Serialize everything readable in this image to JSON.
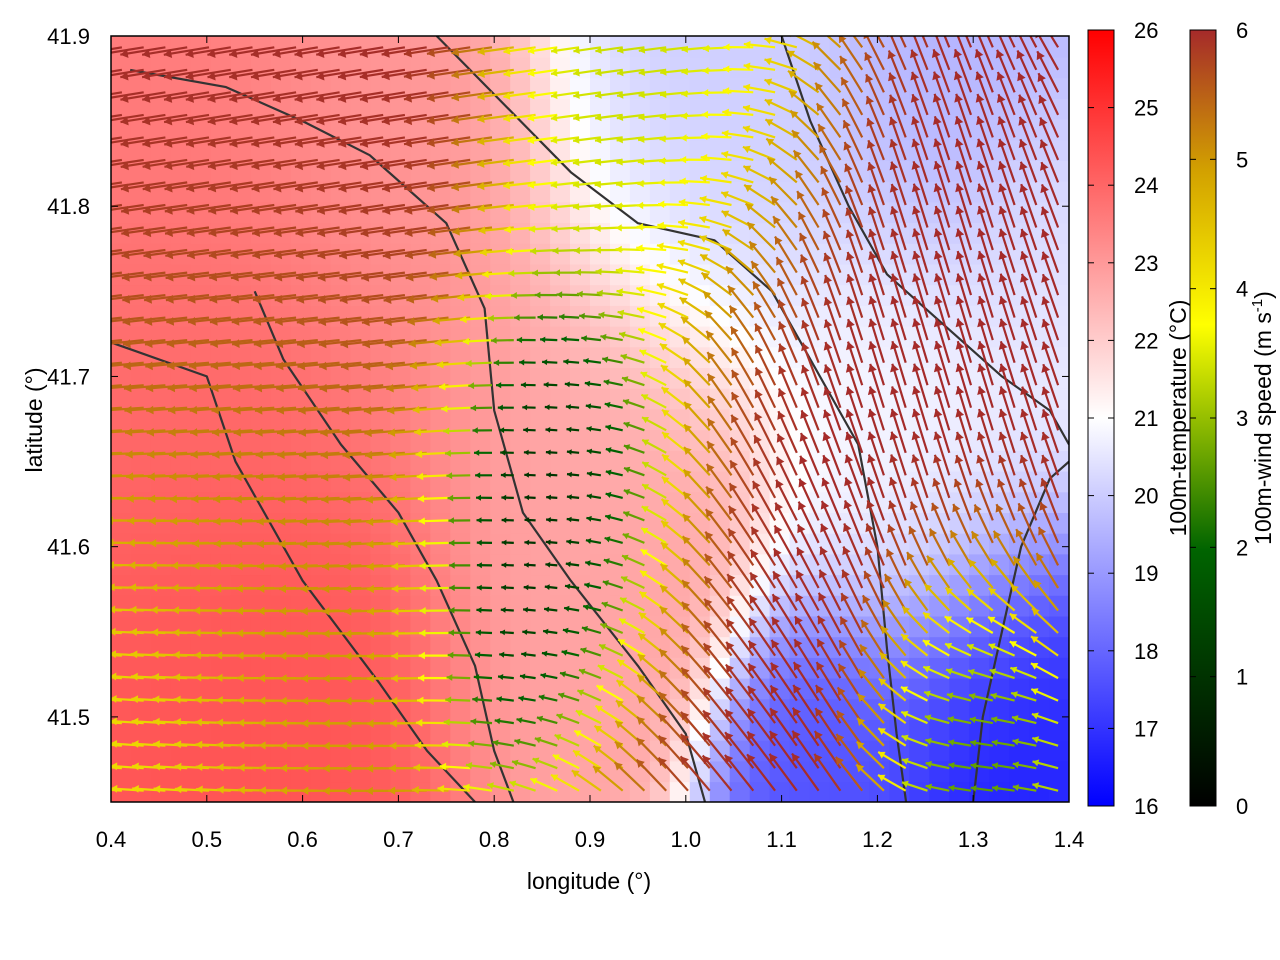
{
  "chart_data": {
    "type": "heatmap",
    "title": "",
    "xlabel": "longitude (°)",
    "ylabel": "latitude (°)",
    "xlim": [
      0.4,
      1.4
    ],
    "ylim": [
      41.45,
      41.9
    ],
    "x_ticks": [
      "0.4",
      "0.5",
      "0.6",
      "0.7",
      "0.8",
      "0.9",
      "1.0",
      "1.1",
      "1.2",
      "1.3",
      "1.4"
    ],
    "y_ticks": [
      "41.5",
      "41.6",
      "41.7",
      "41.8",
      "41.9"
    ],
    "grid": false,
    "legend": "none",
    "layers": {
      "background": "100m-temperature field (filled colour map, °C)",
      "vectors": "100m wind vectors coloured by speed",
      "contours": "terrain contour lines (dark grey)"
    },
    "colorbars": [
      {
        "label": "100m-temperature (°C)",
        "range": [
          16,
          26
        ],
        "ticks": [
          "16",
          "17",
          "18",
          "19",
          "20",
          "21",
          "22",
          "23",
          "24",
          "25",
          "26"
        ],
        "colors": [
          "#0000ff",
          "#ffffff",
          "#ff0000"
        ]
      },
      {
        "label_main": "100m-wind speed (m s",
        "label_sup": "-1",
        "label_end": ")",
        "range": [
          0,
          6
        ],
        "ticks": [
          "0",
          "1",
          "2",
          "3",
          "4",
          "5",
          "6"
        ],
        "colors": [
          "#000000",
          "#006400",
          "#ffff00",
          "#d2a000",
          "#a52a2a"
        ]
      }
    ],
    "temperature_regions": [
      {
        "lon": 0.5,
        "lat": 41.6,
        "temp": 24.5,
        "spread": 0.13
      },
      {
        "lon": 0.47,
        "lat": 41.75,
        "temp": 23.5,
        "spread": 0.12
      },
      {
        "lon": 0.9,
        "lat": 41.64,
        "temp": 22.8,
        "spread": 0.09
      },
      {
        "lon": 0.7,
        "lat": 41.82,
        "temp": 23.0,
        "spread": 0.1
      },
      {
        "lon": 1.32,
        "lat": 41.49,
        "temp": 16.5,
        "spread": 0.07
      },
      {
        "lon": 1.15,
        "lat": 41.46,
        "temp": 17.5,
        "spread": 0.06
      },
      {
        "lon": 1.0,
        "lat": 41.86,
        "temp": 20.0,
        "spread": 0.09
      },
      {
        "lon": 1.3,
        "lat": 41.88,
        "temp": 19.5,
        "spread": 0.08
      },
      {
        "lon": 1.25,
        "lat": 41.65,
        "temp": 20.8,
        "spread": 0.08
      },
      {
        "lon": 1.38,
        "lat": 41.78,
        "temp": 20.5,
        "spread": 0.05
      }
    ],
    "wind_regions": [
      {
        "lon": 0.9,
        "lat": 41.61,
        "speed": 0.3,
        "dir_deg": 180,
        "spread": 0.07
      },
      {
        "lon": 1.3,
        "lat": 41.49,
        "speed": 2.0,
        "dir_deg": 180,
        "spread": 0.05
      },
      {
        "lon": 1.0,
        "lat": 41.86,
        "speed": 3.2,
        "dir_deg": 190,
        "spread": 0.08
      },
      {
        "lon": 0.55,
        "lat": 41.62,
        "speed": 4.8,
        "dir_deg": 180,
        "spread": 0.1
      },
      {
        "lon": 0.42,
        "lat": 41.49,
        "speed": 4.0,
        "dir_deg": 175,
        "spread": 0.08
      },
      {
        "lon": 1.2,
        "lat": 41.68,
        "speed": 6.0,
        "dir_deg": 105,
        "spread": 0.12
      },
      {
        "lon": 0.55,
        "lat": 41.8,
        "speed": 6.0,
        "dir_deg": 190,
        "spread": 0.12
      },
      {
        "lon": 1.05,
        "lat": 41.53,
        "speed": 6.0,
        "dir_deg": 130,
        "spread": 0.09
      }
    ],
    "contour_lines": [
      [
        [
          0.4,
          41.72
        ],
        [
          0.5,
          41.7
        ],
        [
          0.53,
          41.65
        ],
        [
          0.6,
          41.58
        ],
        [
          0.68,
          41.52
        ],
        [
          0.73,
          41.48
        ],
        [
          0.78,
          41.45
        ]
      ],
      [
        [
          0.42,
          41.88
        ],
        [
          0.52,
          41.87
        ],
        [
          0.6,
          41.85
        ],
        [
          0.67,
          41.83
        ],
        [
          0.75,
          41.79
        ],
        [
          0.79,
          41.74
        ],
        [
          0.8,
          41.68
        ],
        [
          0.83,
          41.62
        ],
        [
          0.88,
          41.58
        ],
        [
          0.95,
          41.53
        ],
        [
          1.0,
          41.49
        ],
        [
          1.02,
          41.45
        ]
      ],
      [
        [
          0.55,
          41.75
        ],
        [
          0.58,
          41.71
        ],
        [
          0.64,
          41.66
        ],
        [
          0.7,
          41.62
        ],
        [
          0.74,
          41.58
        ],
        [
          0.78,
          41.53
        ],
        [
          0.8,
          41.48
        ],
        [
          0.82,
          41.45
        ]
      ],
      [
        [
          0.74,
          41.9
        ],
        [
          0.81,
          41.86
        ],
        [
          0.88,
          41.82
        ],
        [
          0.95,
          41.79
        ],
        [
          1.03,
          41.78
        ],
        [
          1.09,
          41.75
        ],
        [
          1.12,
          41.72
        ],
        [
          1.18,
          41.66
        ],
        [
          1.2,
          41.6
        ],
        [
          1.21,
          41.54
        ],
        [
          1.22,
          41.49
        ],
        [
          1.23,
          41.45
        ]
      ],
      [
        [
          1.1,
          41.9
        ],
        [
          1.13,
          41.85
        ],
        [
          1.17,
          41.8
        ],
        [
          1.21,
          41.76
        ],
        [
          1.27,
          41.73
        ],
        [
          1.33,
          41.7
        ],
        [
          1.38,
          41.68
        ],
        [
          1.4,
          41.66
        ]
      ],
      [
        [
          1.3,
          41.45
        ],
        [
          1.31,
          41.5
        ],
        [
          1.33,
          41.55
        ],
        [
          1.35,
          41.6
        ],
        [
          1.38,
          41.64
        ],
        [
          1.4,
          41.65
        ]
      ]
    ]
  }
}
